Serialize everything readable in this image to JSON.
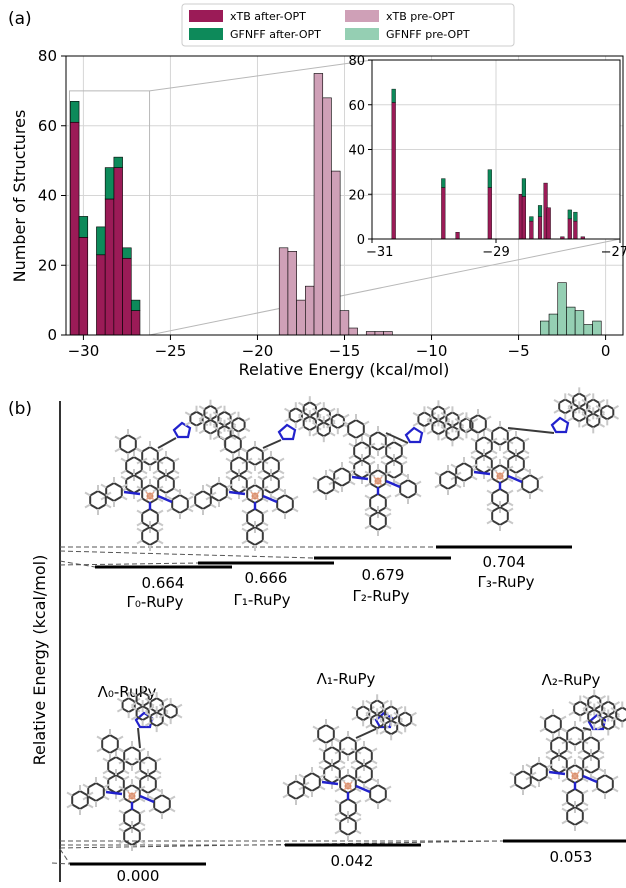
{
  "panel_a": {
    "label": "(a)",
    "legend": [
      {
        "label": "xTB after-OPT",
        "color": "#9b1b57"
      },
      {
        "label": "GFNFF after-OPT",
        "color": "#0d8a5a"
      },
      {
        "label": "xTB pre-OPT",
        "color": "#cfa0b7"
      },
      {
        "label": "GFNFF pre-OPT",
        "color": "#95cfb3"
      }
    ]
  },
  "chart_data": [
    {
      "type": "bar",
      "subtype": "stacked histogram",
      "xlabel": "Relative Energy (kcal/mol)",
      "ylabel": "Number of Structures",
      "xlim": [
        -31,
        1
      ],
      "ylim": [
        0,
        80
      ],
      "xticks": [
        "−30",
        "−25",
        "−20",
        "−15",
        "−10",
        "−5",
        "0"
      ],
      "yticks": [
        "0",
        "20",
        "40",
        "60",
        "80"
      ],
      "grid": true,
      "legend_placement": "top-center",
      "bin_width": 0.5,
      "series": [
        {
          "name": "xTB after-OPT",
          "color": "#9b1b57",
          "x": [
            -30.5,
            -30.0,
            -29.0,
            -28.5,
            -28.0,
            -27.5,
            -27.0
          ],
          "values": [
            61,
            28,
            23,
            39,
            48,
            22,
            7
          ]
        },
        {
          "name": "GFNFF after-OPT",
          "color": "#0d8a5a",
          "x": [
            -30.5,
            -30.0,
            -29.0,
            -28.5,
            -28.0,
            -27.5,
            -27.0
          ],
          "values": [
            6,
            6,
            8,
            9,
            3,
            3,
            3
          ]
        },
        {
          "name": "xTB pre-OPT",
          "color": "#cfa0b7",
          "x": [
            -18.5,
            -18.0,
            -17.5,
            -17.0,
            -16.5,
            -16.0,
            -15.5,
            -15.0,
            -14.5,
            -13.5,
            -13.0,
            -12.5
          ],
          "values": [
            25,
            24,
            10,
            14,
            75,
            68,
            47,
            7,
            2,
            1,
            1,
            1
          ]
        },
        {
          "name": "GFNFF pre-OPT",
          "color": "#95cfb3",
          "x": [
            -3.5,
            -3.0,
            -2.5,
            -2.0,
            -1.5,
            -1.0,
            -0.5
          ],
          "values": [
            4,
            6,
            15,
            8,
            7,
            3,
            4
          ]
        }
      ],
      "zoom_box": {
        "xlim": [
          -30.8,
          -26.2
        ],
        "ylim": [
          0,
          70
        ]
      }
    },
    {
      "type": "bar",
      "subtype": "stacked histogram (inset)",
      "xlim": [
        -31,
        -27
      ],
      "ylim": [
        0,
        80
      ],
      "xticks": [
        "−31",
        "−29",
        "−27"
      ],
      "yticks": [
        "0",
        "20",
        "40",
        "60",
        "80"
      ],
      "grid": true,
      "bin_width": 0.06,
      "series": [
        {
          "name": "xTB after-OPT",
          "color": "#9b1b57",
          "x": [
            -30.65,
            -29.85,
            -29.62,
            -29.1,
            -28.6,
            -28.55,
            -28.43,
            -28.29,
            -28.2,
            -28.15,
            -27.93,
            -27.81,
            -27.72,
            -27.6
          ],
          "values": [
            61,
            23,
            3,
            23,
            20,
            19,
            8,
            10,
            25,
            14,
            1,
            9,
            8,
            1
          ]
        },
        {
          "name": "GFNFF after-OPT",
          "color": "#0d8a5a",
          "x": [
            -30.65,
            -29.85,
            -29.1,
            -28.55,
            -28.43,
            -28.29,
            -27.81,
            -27.72
          ],
          "values": [
            6,
            4,
            8,
            8,
            2,
            5,
            4,
            4
          ]
        }
      ]
    }
  ],
  "panel_b": {
    "label": "(b)",
    "ylabel": "Relative Energy (kcal/mol)",
    "structures": [
      {
        "name": "Γ₀-RuPy",
        "energy_label": "0.664",
        "energy": 0.664,
        "row": "gamma"
      },
      {
        "name": "Γ₁-RuPy",
        "energy_label": "0.666",
        "energy": 0.666,
        "row": "gamma"
      },
      {
        "name": "Γ₂-RuPy",
        "energy_label": "0.679",
        "energy": 0.679,
        "row": "gamma"
      },
      {
        "name": "Γ₃-RuPy",
        "energy_label": "0.704",
        "energy": 0.704,
        "row": "gamma"
      },
      {
        "name": "Λ₀-RuPy",
        "energy_label": "0.000",
        "energy": 0.0,
        "row": "lambda"
      },
      {
        "name": "Λ₁-RuPy",
        "energy_label": "0.042",
        "energy": 0.042,
        "row": "lambda"
      },
      {
        "name": "Λ₂-RuPy",
        "energy_label": "0.053",
        "energy": 0.053,
        "row": "lambda"
      }
    ]
  }
}
